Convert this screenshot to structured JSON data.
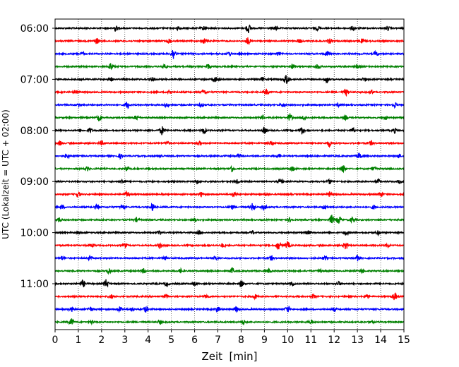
{
  "chart_data": {
    "type": "line",
    "xlabel": "Zeit  [min]",
    "ylabel": "UTC (Lokalzeit = UTC + 02:00)",
    "xlim": [
      0,
      15
    ],
    "x_ticks": [
      0,
      1,
      2,
      3,
      4,
      5,
      6,
      7,
      8,
      9,
      10,
      11,
      12,
      13,
      14,
      15
    ],
    "grid": "vertical dotted at each minute",
    "y_tick_labels": [
      "06:00",
      "07:00",
      "08:00",
      "09:00",
      "10:00",
      "11:00"
    ],
    "y_tick_traces": [
      0,
      4,
      8,
      12,
      16,
      20
    ],
    "trace_colors": [
      "#000000",
      "#ff0000",
      "#0000ff",
      "#008000"
    ],
    "trace_count": 24,
    "events": [
      [
        [
          2.6,
          0.6
        ],
        [
          5.3,
          0.4
        ],
        [
          6.4,
          0.4
        ],
        [
          8.3,
          1.0
        ],
        [
          9.5,
          0.4
        ],
        [
          11.3,
          0.4
        ],
        [
          12.8,
          0.4
        ],
        [
          14.3,
          0.4
        ]
      ],
      [
        [
          1.8,
          0.6
        ],
        [
          4.9,
          0.5
        ],
        [
          6.4,
          0.5
        ],
        [
          8.3,
          0.8
        ],
        [
          10.5,
          0.4
        ],
        [
          11.8,
          0.5
        ],
        [
          13.2,
          0.4
        ]
      ],
      [
        [
          1.2,
          0.3
        ],
        [
          5.1,
          1.3
        ],
        [
          7.5,
          0.4
        ],
        [
          9.6,
          0.4
        ],
        [
          11.7,
          0.5
        ],
        [
          13.8,
          0.5
        ]
      ],
      [
        [
          2.4,
          0.8
        ],
        [
          4.7,
          0.5
        ],
        [
          6.6,
          0.5
        ],
        [
          10.2,
          0.5
        ],
        [
          11.3,
          0.5
        ],
        [
          13.0,
          0.4
        ]
      ],
      [
        [
          2.4,
          0.4
        ],
        [
          4.2,
          0.4
        ],
        [
          6.9,
          0.5
        ],
        [
          8.9,
          0.4
        ],
        [
          9.9,
          0.6
        ],
        [
          10.0,
          0.6
        ],
        [
          11.7,
          0.8
        ],
        [
          13.3,
          0.4
        ]
      ],
      [
        [
          0.9,
          0.3
        ],
        [
          4.9,
          0.5
        ],
        [
          6.4,
          0.5
        ],
        [
          9.1,
          0.6
        ],
        [
          12.5,
          0.7
        ],
        [
          13.6,
          0.4
        ]
      ],
      [
        [
          1.0,
          0.3
        ],
        [
          3.1,
          0.8
        ],
        [
          4.8,
          0.4
        ],
        [
          6.3,
          0.4
        ],
        [
          9.8,
          0.4
        ],
        [
          12.2,
          0.4
        ],
        [
          14.6,
          0.5
        ]
      ],
      [
        [
          1.9,
          0.7
        ],
        [
          3.5,
          0.5
        ],
        [
          8.9,
          0.5
        ],
        [
          10.1,
          0.8
        ],
        [
          10.7,
          0.5
        ],
        [
          12.5,
          0.4
        ],
        [
          14.2,
          0.4
        ]
      ],
      [
        [
          1.5,
          0.5
        ],
        [
          4.6,
          0.9
        ],
        [
          6.4,
          0.7
        ],
        [
          9.0,
          0.7
        ],
        [
          10.6,
          0.9
        ],
        [
          12.8,
          0.5
        ],
        [
          14.6,
          0.5
        ]
      ],
      [
        [
          0.2,
          0.4
        ],
        [
          2.0,
          0.4
        ],
        [
          4.8,
          0.4
        ],
        [
          6.2,
          0.4
        ],
        [
          9.3,
          0.4
        ],
        [
          11.8,
          0.7
        ],
        [
          13.6,
          0.4
        ]
      ],
      [
        [
          0.5,
          0.5
        ],
        [
          2.8,
          0.4
        ],
        [
          4.5,
          0.3
        ],
        [
          7.9,
          0.4
        ],
        [
          9.6,
          0.4
        ],
        [
          13.1,
          0.6
        ],
        [
          14.8,
          0.4
        ]
      ],
      [
        [
          1.4,
          0.4
        ],
        [
          3.1,
          0.4
        ],
        [
          7.6,
          0.7
        ],
        [
          10.2,
          0.5
        ],
        [
          12.4,
          0.8
        ],
        [
          13.7,
          0.4
        ]
      ],
      [
        [
          2.9,
          0.5
        ],
        [
          6.1,
          0.4
        ],
        [
          7.8,
          0.4
        ],
        [
          9.7,
          0.6
        ],
        [
          11.8,
          0.5
        ],
        [
          13.9,
          0.4
        ],
        [
          14.8,
          0.4
        ]
      ],
      [
        [
          1.0,
          0.6
        ],
        [
          3.1,
          0.7
        ],
        [
          6.3,
          0.5
        ],
        [
          7.7,
          0.5
        ],
        [
          9.1,
          0.4
        ],
        [
          11.8,
          0.5
        ],
        [
          14.0,
          0.6
        ]
      ],
      [
        [
          0.3,
          0.4
        ],
        [
          1.8,
          0.5
        ],
        [
          2.9,
          0.5
        ],
        [
          4.2,
          0.8
        ],
        [
          7.6,
          0.4
        ],
        [
          8.5,
          0.8
        ],
        [
          9.0,
          0.5
        ],
        [
          11.6,
          0.4
        ],
        [
          13.7,
          0.4
        ]
      ],
      [
        [
          0.2,
          0.5
        ],
        [
          3.5,
          0.4
        ],
        [
          6.0,
          0.4
        ],
        [
          10.1,
          0.4
        ],
        [
          11.9,
          1.0
        ],
        [
          12.2,
          0.9
        ],
        [
          12.8,
          0.6
        ]
      ],
      [
        [
          1.0,
          0.3
        ],
        [
          4.5,
          0.4
        ],
        [
          6.2,
          0.4
        ],
        [
          8.5,
          0.4
        ],
        [
          10.9,
          0.4
        ],
        [
          12.5,
          0.5
        ],
        [
          13.9,
          0.4
        ]
      ],
      [
        [
          1.6,
          0.3
        ],
        [
          3.0,
          0.4
        ],
        [
          4.5,
          0.5
        ],
        [
          7.2,
          0.4
        ],
        [
          9.6,
          0.9
        ],
        [
          10.0,
          0.8
        ],
        [
          12.5,
          0.9
        ],
        [
          14.3,
          0.4
        ]
      ],
      [
        [
          0.3,
          0.4
        ],
        [
          1.5,
          0.4
        ],
        [
          4.7,
          0.4
        ],
        [
          6.9,
          0.4
        ],
        [
          9.3,
          0.4
        ],
        [
          11.6,
          0.4
        ],
        [
          13.0,
          0.6
        ]
      ],
      [
        [
          2.3,
          0.5
        ],
        [
          3.8,
          0.4
        ],
        [
          5.4,
          0.4
        ],
        [
          7.6,
          0.6
        ],
        [
          9.2,
          0.4
        ],
        [
          11.4,
          0.4
        ],
        [
          13.2,
          0.4
        ]
      ],
      [
        [
          1.2,
          0.7
        ],
        [
          2.2,
          0.9
        ],
        [
          4.8,
          0.5
        ],
        [
          6.0,
          0.4
        ],
        [
          8.0,
          0.7
        ],
        [
          10.2,
          0.4
        ],
        [
          12.2,
          0.4
        ]
      ],
      [
        [
          2.4,
          0.4
        ],
        [
          4.8,
          0.4
        ],
        [
          6.5,
          0.4
        ],
        [
          8.6,
          0.4
        ],
        [
          11.1,
          0.4
        ],
        [
          13.4,
          0.4
        ],
        [
          14.6,
          0.8
        ]
      ],
      [
        [
          0.7,
          0.4
        ],
        [
          1.5,
          0.5
        ],
        [
          2.8,
          0.6
        ],
        [
          3.3,
          0.5
        ],
        [
          3.9,
          0.6
        ],
        [
          7.0,
          0.5
        ],
        [
          7.8,
          0.6
        ],
        [
          10.0,
          0.7
        ],
        [
          12.0,
          0.4
        ]
      ],
      [
        [
          0.7,
          0.7
        ],
        [
          1.6,
          0.4
        ],
        [
          4.5,
          0.4
        ],
        [
          8.1,
          0.4
        ],
        [
          11.0,
          0.4
        ],
        [
          13.6,
          0.4
        ]
      ]
    ]
  }
}
